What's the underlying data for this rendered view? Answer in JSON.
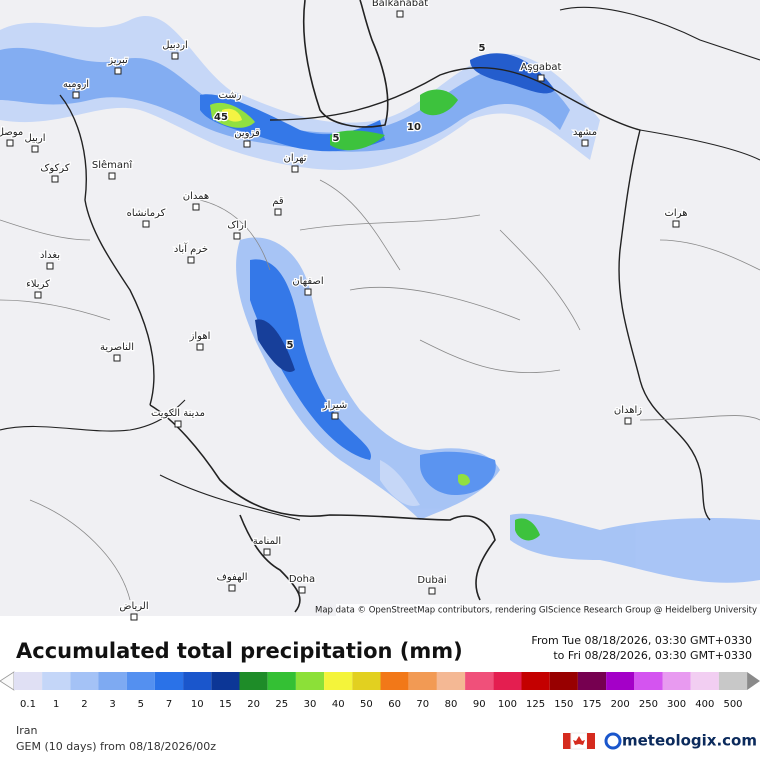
{
  "map": {
    "cities": [
      "Balkanabat",
      "Aşgabat",
      "تبریز",
      "ارومیه",
      "اردبیل",
      "رشت",
      "قزوین",
      "تهران",
      "مشهد",
      "Slêmanî",
      "کرکوک",
      "اربیل",
      "موصل",
      "همدان",
      "کرمانشاه",
      "قم",
      "اراک",
      "خرم آباد",
      "بغداد",
      "کربلاء",
      "اصفهان",
      "اهواز",
      "الناصرية",
      "شیراز",
      "مدينة الكويت",
      "زاهدان",
      "هرات",
      "المنامة",
      "الهفوف",
      "Doha",
      "Dubai",
      "الرياض"
    ],
    "annotations": [
      "45",
      "5",
      "10",
      "5",
      "5"
    ],
    "attribution": "Map data © OpenStreetMap contributors, rendering GIScience Research Group @ Heidelberg University"
  },
  "header": {
    "title": "Accumulated total precipitation (mm)",
    "from": "From Tue 08/18/2026, 03:30 GMT+0330",
    "to": "to Fri 08/28/2026, 03:30 GMT+0330"
  },
  "legend": {
    "values": [
      0.1,
      1,
      2,
      3,
      5,
      7,
      10,
      15,
      20,
      25,
      30,
      40,
      50,
      60,
      70,
      80,
      90,
      100,
      125,
      150,
      175,
      200,
      250,
      300,
      400,
      500
    ],
    "colors": [
      "#e0e0f4",
      "#c4d6f8",
      "#a4c2f6",
      "#7eaaf2",
      "#5490f0",
      "#2a72e8",
      "#1a56cc",
      "#0c3696",
      "#1e8c28",
      "#34c034",
      "#8ce038",
      "#f4f43a",
      "#e2d020",
      "#f27818",
      "#f29a54",
      "#f4b894",
      "#f0507a",
      "#e41e50",
      "#c40000",
      "#980000",
      "#760050",
      "#a400c8",
      "#d454f0",
      "#e89af0",
      "#f2cef2",
      "#c8c8c8"
    ]
  },
  "footer": {
    "region": "Iran",
    "model": "GEM (10 days) from 08/18/2026/00z",
    "brand": "meteologix.com"
  }
}
